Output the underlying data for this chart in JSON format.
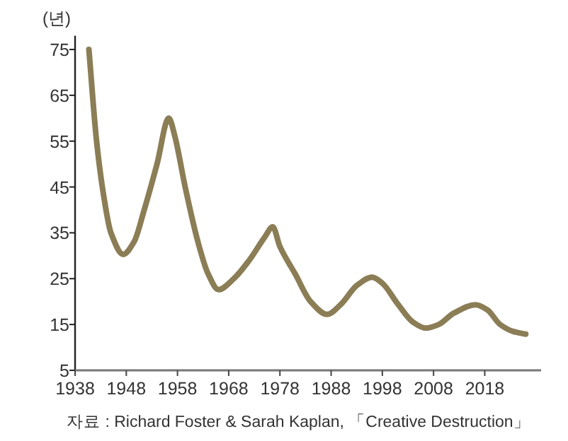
{
  "chart_data": {
    "type": "line",
    "ylabel": "(년)",
    "annotations": [
      "자료 : Richard Foster & Sarah Kaplan, 「Creative Destruction」"
    ],
    "xlim": [
      1938,
      2029
    ],
    "xticks": [
      1938,
      1948,
      1958,
      1968,
      1978,
      1988,
      1998,
      2008,
      2018
    ],
    "ylim": [
      5,
      78
    ],
    "yticks": [
      5,
      15,
      25,
      35,
      45,
      55,
      65,
      75
    ],
    "grid": false,
    "marker": "none",
    "line_style": "solid",
    "series": [
      {
        "color": "#8b7d55",
        "x": [
          1940.7,
          1942.2,
          1943.6,
          1945,
          1947.4,
          1949.5,
          1951.5,
          1954,
          1956.3,
          1957.5,
          1959.5,
          1962,
          1964,
          1966,
          1969,
          1972,
          1975,
          1976.6,
          1978,
          1981,
          1984,
          1987.2,
          1990,
          1993,
          1996,
          1998,
          2001,
          2004,
          2006.5,
          2009,
          2012,
          2016.2,
          2018.5,
          2021,
          2023.5,
          2026
        ],
        "values": [
          75,
          55,
          43,
          35,
          30.3,
          33,
          40,
          50,
          60,
          56,
          45,
          33,
          26,
          22.6,
          25,
          29,
          34,
          36.3,
          32,
          26,
          20,
          17.2,
          19.5,
          23.5,
          25.3,
          24,
          19.5,
          15.5,
          14.2,
          15,
          17.5,
          19.3,
          18.2,
          15,
          13.5,
          12.9
        ]
      }
    ]
  }
}
